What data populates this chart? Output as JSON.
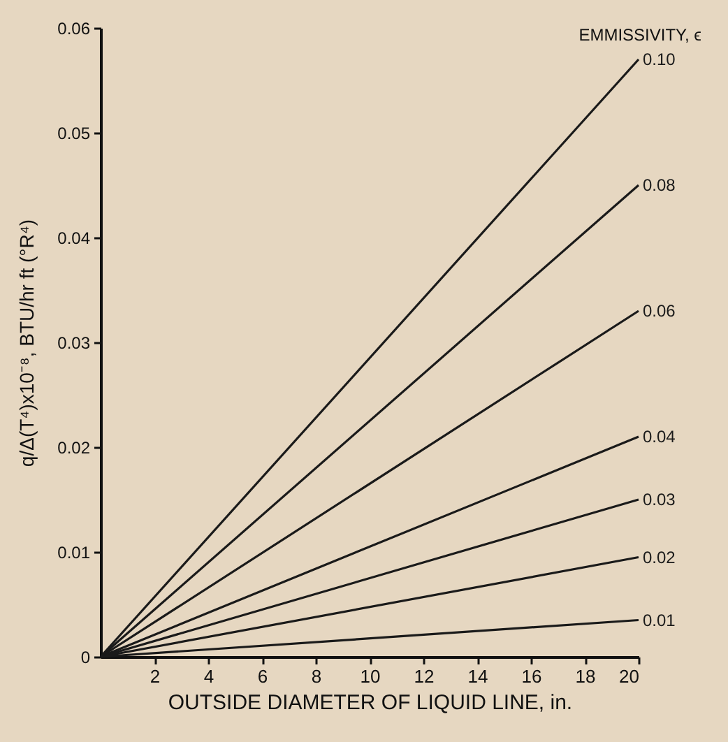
{
  "chart_data": {
    "type": "line",
    "xlabel": "OUTSIDE DIAMETER OF LIQUID LINE, in.",
    "ylabel": "q/Δ(T⁴)x10⁻⁸, BTU/hr ft (°R⁴)",
    "legend_title": "EMMISSIVITY, ϵ",
    "x": [
      0,
      20
    ],
    "series": [
      {
        "name": "0.10",
        "color": "#1a1a1a",
        "values": [
          0,
          0.057
        ]
      },
      {
        "name": "0.08",
        "color": "#1a1a1a",
        "values": [
          0,
          0.045
        ]
      },
      {
        "name": "0.06",
        "color": "#1a1a1a",
        "values": [
          0,
          0.033
        ]
      },
      {
        "name": "0.04",
        "color": "#1a1a1a",
        "values": [
          0,
          0.021
        ]
      },
      {
        "name": "0.03",
        "color": "#1a1a1a",
        "values": [
          0,
          0.015
        ]
      },
      {
        "name": "0.02",
        "color": "#1a1a1a",
        "values": [
          0,
          0.0095
        ]
      },
      {
        "name": "0.01",
        "color": "#1a1a1a",
        "values": [
          0,
          0.0035
        ]
      }
    ],
    "xlim": [
      0,
      20
    ],
    "xticks": [
      2,
      4,
      6,
      8,
      10,
      12,
      14,
      16,
      18,
      20
    ],
    "ylim": [
      0,
      0.06
    ],
    "yticks": [
      0,
      0.01,
      0.02,
      0.03,
      0.04,
      0.05,
      0.06
    ],
    "grid": false,
    "legend": false,
    "marker": "none",
    "line_style": "solid"
  }
}
